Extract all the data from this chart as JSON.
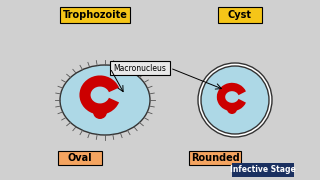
{
  "bg_color": "#d0d0d0",
  "cell_color": "#add8e6",
  "trophozoite_label": "Trophozoite",
  "cyst_label": "Cyst",
  "macronucleus_label": "Macronucleus",
  "oval_label": "Oval",
  "rounded_label": "Rounded",
  "infective_label": "Infective Stage",
  "label_box_yellow": "#f5c518",
  "label_box_peach": "#f4a460",
  "label_box_navy": "#1a3060",
  "macronucleus_box": "#e8e8e8",
  "red_color": "#cc0000",
  "spine_color": "#555555",
  "outline_color": "#333333"
}
